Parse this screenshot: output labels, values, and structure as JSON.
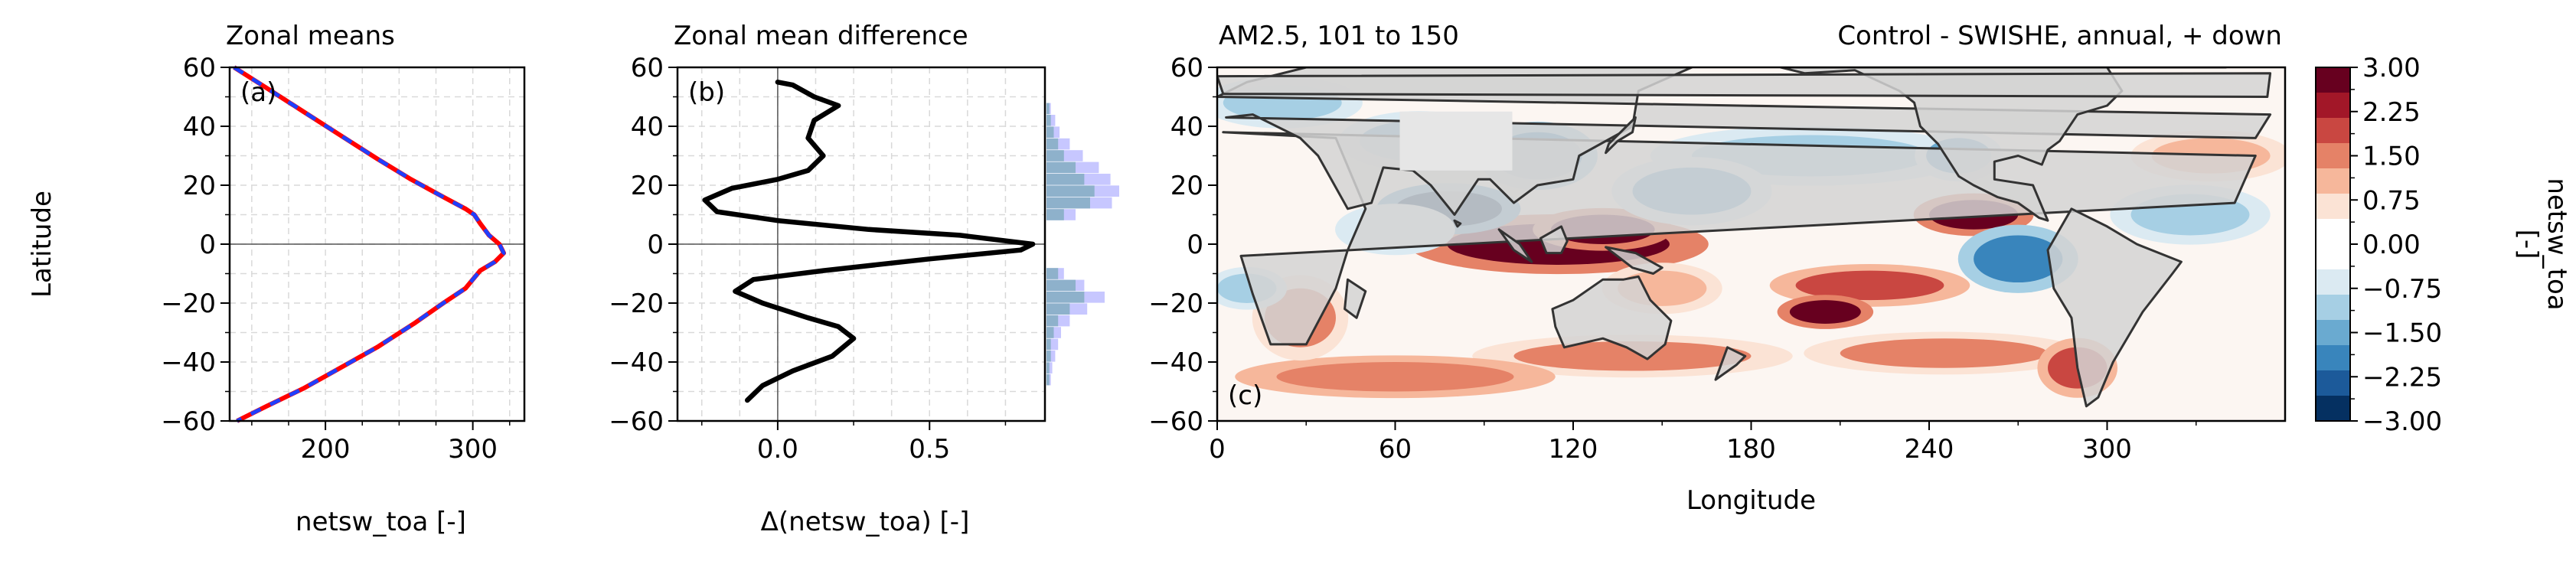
{
  "chart_data": [
    {
      "panel": "a",
      "type": "line",
      "title": "Zonal means",
      "panel_label": "(a)",
      "xlabel": "netsw_toa [-]",
      "ylabel": "Latitude",
      "xlim": [
        135,
        335
      ],
      "ylim": [
        -60,
        60
      ],
      "xticks": [
        200,
        300
      ],
      "yticks": [
        -60,
        -40,
        -20,
        0,
        20,
        40,
        60
      ],
      "grid": true,
      "series": [
        {
          "color": "#ff0000",
          "dash": "solid",
          "x": [
            138,
            160,
            185,
            210,
            235,
            258,
            280,
            295,
            301,
            305,
            311,
            318,
            321,
            315,
            305,
            300,
            295,
            280,
            260,
            235,
            210,
            185,
            160,
            140
          ],
          "y": [
            60,
            53,
            45,
            37,
            29,
            22,
            16,
            12,
            10,
            7,
            3,
            0,
            -3,
            -6,
            -9,
            -12,
            -15,
            -20,
            -27,
            -35,
            -42,
            -49,
            -55,
            -60
          ]
        },
        {
          "color": "#1f3fff",
          "dash": "dashed",
          "x": [
            138,
            160,
            185,
            210,
            235,
            258,
            280,
            295,
            301,
            305,
            311,
            318,
            321,
            315,
            305,
            300,
            295,
            280,
            260,
            235,
            210,
            185,
            160,
            140
          ],
          "y": [
            60,
            53,
            45,
            37,
            29,
            22,
            16,
            12,
            10,
            7,
            3,
            0,
            -3,
            -6,
            -9,
            -12,
            -15,
            -20,
            -27,
            -35,
            -42,
            -49,
            -55,
            -60
          ]
        }
      ]
    },
    {
      "panel": "b",
      "type": "line",
      "title": "Zonal mean difference",
      "panel_label": "(b)",
      "xlabel": "Δ(netsw_toa) [-]",
      "xlim": [
        -0.33,
        0.88
      ],
      "ylim": [
        -60,
        60
      ],
      "xticks": [
        0.0,
        0.5
      ],
      "xtick_labels": [
        "0.0",
        "0.5"
      ],
      "yticks": [
        -60,
        -40,
        -20,
        0,
        20,
        40,
        60
      ],
      "grid": true,
      "series": [
        {
          "color": "#000000",
          "x": [
            0.0,
            0.05,
            0.12,
            0.2,
            0.12,
            0.1,
            0.15,
            0.1,
            0.0,
            -0.15,
            -0.24,
            -0.2,
            0.0,
            0.3,
            0.6,
            0.84,
            0.8,
            0.5,
            0.15,
            -0.08,
            -0.14,
            -0.05,
            0.1,
            0.2,
            0.25,
            0.18,
            0.05,
            -0.05,
            -0.1
          ],
          "y": [
            55,
            54,
            50,
            47,
            42,
            36,
            30,
            25,
            22,
            19,
            15,
            11,
            8,
            5,
            3,
            0,
            -2,
            -5,
            -9,
            -12,
            -16,
            -20,
            -25,
            -28,
            -32,
            -38,
            -43,
            -48,
            -53
          ]
        }
      ],
      "histogram": {
        "colors": [
          "#9999ff",
          "#5f9ea0"
        ],
        "bins_y": [
          46,
          42,
          38,
          34,
          30,
          26,
          22,
          18,
          14,
          10,
          -10,
          -14,
          -18,
          -22,
          -26,
          -30,
          -34,
          -38,
          -42,
          -46
        ],
        "purple": [
          0.3,
          0.6,
          0.9,
          1.6,
          2.5,
          3.6,
          4.4,
          5.0,
          4.5,
          2.0,
          1.2,
          2.6,
          4.0,
          2.8,
          1.6,
          1.0,
          0.8,
          0.6,
          0.4,
          0.3
        ],
        "teal": [
          0.2,
          0.3,
          0.5,
          0.8,
          1.2,
          2.0,
          2.6,
          3.3,
          3.0,
          1.2,
          0.8,
          2.0,
          2.6,
          1.6,
          0.8,
          0.5,
          0.3,
          0.3,
          0.2,
          0.2
        ]
      }
    },
    {
      "panel": "c",
      "type": "heatmap",
      "title_left": "AM2.5, 101 to 150",
      "title_right": "Control - SWISHE, annual, + down",
      "panel_label": "(c)",
      "xlabel": "Longitude",
      "xlim": [
        0,
        360
      ],
      "ylim": [
        -60,
        60
      ],
      "xticks": [
        0,
        60,
        120,
        180,
        240,
        300
      ],
      "yticks": [
        -60,
        -40,
        -20,
        0,
        20,
        40,
        60
      ],
      "colorbar": {
        "label": "netsw_toa\n[-]",
        "range": [
          -3.0,
          3.0
        ],
        "tick_labels": [
          "3.00",
          "2.25",
          "1.50",
          "0.75",
          "0.00",
          "−0.75",
          "−1.50",
          "−2.25",
          "−3.00"
        ],
        "colors_top_to_bottom": [
          "#67001f",
          "#a21728",
          "#c94741",
          "#e58267",
          "#f6b79b",
          "#fbe3d5",
          "#ffffff",
          "#ffffff",
          "#dbeaf2",
          "#a6cfe4",
          "#6aaad0",
          "#3985bc",
          "#1c5a9a",
          "#053061"
        ]
      },
      "anomaly_patches": [
        {
          "lon": 115,
          "lat": 0,
          "w": 75,
          "h": 14,
          "value": 3.0
        },
        {
          "lon": 130,
          "lat": 5,
          "w": 35,
          "h": 10,
          "value": 2.6
        },
        {
          "lon": 78,
          "lat": 12,
          "w": 36,
          "h": 12,
          "value": -2.8
        },
        {
          "lon": 108,
          "lat": 30,
          "w": 30,
          "h": 16,
          "value": -2.0
        },
        {
          "lon": 68,
          "lat": 35,
          "w": 40,
          "h": 14,
          "value": -1.5
        },
        {
          "lon": 22,
          "lat": 48,
          "w": 40,
          "h": 12,
          "value": -1.2
        },
        {
          "lon": 200,
          "lat": 30,
          "w": 80,
          "h": 14,
          "value": -0.9
        },
        {
          "lon": 160,
          "lat": 18,
          "w": 40,
          "h": 16,
          "value": -1.3
        },
        {
          "lon": 255,
          "lat": 10,
          "w": 30,
          "h": 10,
          "value": 2.8
        },
        {
          "lon": 250,
          "lat": 30,
          "w": 22,
          "h": 12,
          "value": -1.5
        },
        {
          "lon": 270,
          "lat": -5,
          "w": 30,
          "h": 16,
          "value": -1.8
        },
        {
          "lon": 220,
          "lat": -14,
          "w": 50,
          "h": 10,
          "value": 1.8
        },
        {
          "lon": 205,
          "lat": -23,
          "w": 24,
          "h": 8,
          "value": 2.7
        },
        {
          "lon": 150,
          "lat": -15,
          "w": 30,
          "h": 12,
          "value": 1.2
        },
        {
          "lon": 245,
          "lat": -37,
          "w": 70,
          "h": 10,
          "value": 1.5
        },
        {
          "lon": 140,
          "lat": -38,
          "w": 80,
          "h": 10,
          "value": 1.3
        },
        {
          "lon": 60,
          "lat": -45,
          "w": 80,
          "h": 10,
          "value": 1.6
        },
        {
          "lon": 28,
          "lat": -25,
          "w": 24,
          "h": 20,
          "value": 1.5
        },
        {
          "lon": 10,
          "lat": -15,
          "w": 20,
          "h": 10,
          "value": -0.9
        },
        {
          "lon": 290,
          "lat": -42,
          "w": 20,
          "h": 14,
          "value": 1.8
        },
        {
          "lon": 328,
          "lat": 10,
          "w": 40,
          "h": 14,
          "value": -1.2
        },
        {
          "lon": 335,
          "lat": 30,
          "w": 40,
          "h": 12,
          "value": 1.0
        },
        {
          "lon": 60,
          "lat": 5,
          "w": 30,
          "h": 12,
          "value": -0.8
        }
      ],
      "land": [
        [
          [
            2,
            38
          ],
          [
            40,
            36
          ],
          [
            50,
            12
          ],
          [
            44,
            -2
          ],
          [
            40,
            -15
          ],
          [
            30,
            -34
          ],
          [
            18,
            -34
          ],
          [
            12,
            -17
          ],
          [
            8,
            -4
          ],
          [
            -17,
            14
          ],
          [
            -10,
            30
          ],
          [
            2,
            38
          ]
        ],
        [
          [
            -10,
            36
          ],
          [
            -5,
            44
          ],
          [
            0,
            50
          ],
          [
            10,
            55
          ],
          [
            30,
            60
          ],
          [
            60,
            60
          ],
          [
            100,
            60
          ],
          [
            140,
            60
          ],
          [
            160,
            60
          ],
          [
            142,
            52
          ],
          [
            140,
            40
          ],
          [
            122,
            30
          ],
          [
            120,
            22
          ],
          [
            108,
            20
          ],
          [
            100,
            14
          ],
          [
            98,
            16
          ],
          [
            92,
            22
          ],
          [
            88,
            22
          ],
          [
            80,
            10
          ],
          [
            72,
            20
          ],
          [
            66,
            25
          ],
          [
            56,
            26
          ],
          [
            52,
            14
          ],
          [
            44,
            12
          ],
          [
            34,
            30
          ],
          [
            28,
            36
          ],
          [
            20,
            40
          ],
          [
            12,
            44
          ],
          [
            3,
            43
          ],
          [
            -10,
            36
          ]
        ],
        [
          [
            113,
            -22
          ],
          [
            120,
            -19
          ],
          [
            130,
            -12
          ],
          [
            137,
            -12
          ],
          [
            142,
            -11
          ],
          [
            146,
            -19
          ],
          [
            153,
            -26
          ],
          [
            151,
            -34
          ],
          [
            145,
            -39
          ],
          [
            138,
            -35
          ],
          [
            130,
            -32
          ],
          [
            117,
            -35
          ],
          [
            114,
            -28
          ],
          [
            113,
            -22
          ]
        ],
        [
          [
            280,
            -2
          ],
          [
            282,
            -15
          ],
          [
            288,
            -25
          ],
          [
            290,
            -42
          ],
          [
            293,
            -55
          ],
          [
            297,
            -52
          ],
          [
            302,
            -40
          ],
          [
            312,
            -23
          ],
          [
            322,
            -10
          ],
          [
            325,
            -6
          ],
          [
            310,
            0
          ],
          [
            300,
            6
          ],
          [
            288,
            12
          ],
          [
            280,
            -2
          ]
        ],
        [
          [
            190,
            60
          ],
          [
            198,
            58
          ],
          [
            215,
            59
          ],
          [
            230,
            52
          ],
          [
            235,
            48
          ],
          [
            237,
            40
          ],
          [
            243,
            34
          ],
          [
            250,
            23
          ],
          [
            255,
            20
          ],
          [
            263,
            16
          ],
          [
            270,
            14
          ],
          [
            277,
            9
          ],
          [
            280,
            8
          ],
          [
            275,
            20
          ],
          [
            262,
            22
          ],
          [
            262,
            28
          ],
          [
            270,
            30
          ],
          [
            278,
            27
          ],
          [
            280,
            32
          ],
          [
            284,
            35
          ],
          [
            290,
            44
          ],
          [
            300,
            47
          ],
          [
            305,
            52
          ],
          [
            300,
            60
          ],
          [
            190,
            60
          ]
        ],
        [
          [
            300,
            60
          ],
          [
            320,
            60
          ],
          [
            340,
            60
          ],
          [
            335,
            65
          ],
          [
            300,
            60
          ]
        ],
        [
          [
            131,
            31
          ],
          [
            135,
            35
          ],
          [
            140,
            38
          ],
          [
            141,
            43
          ],
          [
            138,
            40
          ],
          [
            132,
            34
          ],
          [
            131,
            31
          ]
        ],
        [
          [
            80,
            8
          ],
          [
            82,
            7
          ],
          [
            81,
            6
          ],
          [
            80,
            8
          ]
        ],
        [
          [
            95,
            5
          ],
          [
            102,
            0
          ],
          [
            106,
            -6
          ],
          [
            100,
            -2
          ],
          [
            95,
            5
          ]
        ],
        [
          [
            109,
            2
          ],
          [
            116,
            6
          ],
          [
            118,
            1
          ],
          [
            116,
            -3
          ],
          [
            111,
            -3
          ],
          [
            109,
            2
          ]
        ],
        [
          [
            131,
            -1
          ],
          [
            141,
            -3
          ],
          [
            150,
            -8
          ],
          [
            147,
            -10
          ],
          [
            140,
            -8
          ],
          [
            131,
            -1
          ]
        ],
        [
          [
            172,
            -35
          ],
          [
            178,
            -38
          ],
          [
            175,
            -41
          ],
          [
            168,
            -46
          ],
          [
            172,
            -35
          ]
        ],
        [
          [
            44,
            -12
          ],
          [
            50,
            -16
          ],
          [
            47,
            -25
          ],
          [
            43,
            -22
          ],
          [
            44,
            -12
          ]
        ],
        [
          [
            -6,
            50
          ],
          [
            2,
            51
          ],
          [
            0,
            57
          ],
          [
            -5,
            58
          ],
          [
            -6,
            50
          ]
        ]
      ],
      "plateau_box": {
        "lon": [
          60,
          100
        ],
        "lat": [
          25,
          45
        ]
      }
    }
  ]
}
